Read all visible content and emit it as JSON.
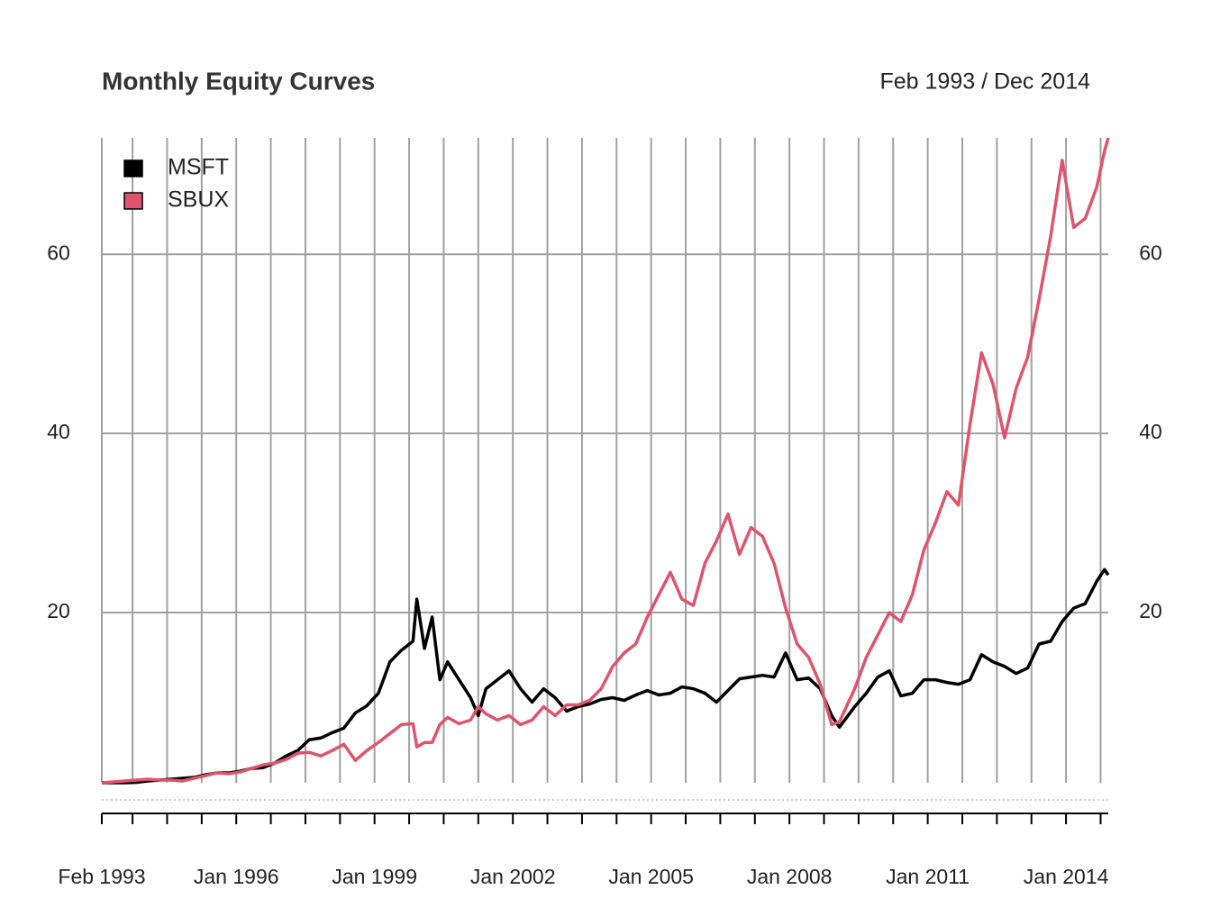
{
  "chart_data": {
    "type": "line",
    "title": "Monthly Equity Curves",
    "subtitle": "Feb 1993 / Dec 2014",
    "x": [
      "1993-02",
      "1993-05",
      "1993-08",
      "1993-11",
      "1994-02",
      "1994-05",
      "1994-08",
      "1994-11",
      "1995-02",
      "1995-05",
      "1995-08",
      "1995-11",
      "1996-02",
      "1996-05",
      "1996-08",
      "1996-11",
      "1997-02",
      "1997-05",
      "1997-08",
      "1997-11",
      "1998-02",
      "1998-05",
      "1998-08",
      "1998-11",
      "1999-02",
      "1999-05",
      "1999-08",
      "1999-11",
      "1999-12",
      "2000-02",
      "2000-04",
      "2000-06",
      "2000-08",
      "2000-11",
      "2001-02",
      "2001-04",
      "2001-06",
      "2001-09",
      "2001-12",
      "2002-03",
      "2002-06",
      "2002-09",
      "2002-12",
      "2003-03",
      "2003-06",
      "2003-09",
      "2003-12",
      "2004-03",
      "2004-06",
      "2004-09",
      "2004-12",
      "2005-03",
      "2005-06",
      "2005-09",
      "2005-12",
      "2006-03",
      "2006-06",
      "2006-09",
      "2006-12",
      "2007-03",
      "2007-06",
      "2007-09",
      "2007-12",
      "2008-03",
      "2008-06",
      "2008-09",
      "2008-12",
      "2009-02",
      "2009-06",
      "2009-09",
      "2009-12",
      "2010-03",
      "2010-06",
      "2010-09",
      "2010-12",
      "2011-03",
      "2011-06",
      "2011-09",
      "2011-12",
      "2012-03",
      "2012-06",
      "2012-09",
      "2012-12",
      "2013-03",
      "2013-06",
      "2013-09",
      "2013-12",
      "2014-03",
      "2014-06",
      "2014-09",
      "2014-11",
      "2014-12"
    ],
    "series": [
      {
        "name": "MSFT",
        "color": "#000000",
        "values": [
          1.0,
          1.0,
          1.0,
          1.05,
          1.2,
          1.3,
          1.4,
          1.5,
          1.6,
          1.9,
          2.1,
          2.1,
          2.3,
          2.6,
          2.7,
          3.2,
          4.0,
          4.6,
          5.8,
          6.0,
          6.6,
          7.1,
          8.8,
          9.6,
          11.0,
          14.5,
          15.8,
          16.8,
          21.5,
          16,
          19.5,
          12.5,
          14.5,
          12.5,
          10.5,
          8.5,
          11.5,
          12.5,
          13.5,
          11.5,
          10,
          11.5,
          10.5,
          9.0,
          9.5,
          9.8,
          10.3,
          10.5,
          10.2,
          10.8,
          11.3,
          10.8,
          11.0,
          11.7,
          11.5,
          11.0,
          10.0,
          11.3,
          12.6,
          12.8,
          13.0,
          12.8,
          15.5,
          12.5,
          12.7,
          11.5,
          8.5,
          7.2,
          9.5,
          11.0,
          12.8,
          13.5,
          10.7,
          11.0,
          12.5,
          12.5,
          12.2,
          12.0,
          12.5,
          15.3,
          14.5,
          14.0,
          13.2,
          13.8,
          16.5,
          16.8,
          19.0,
          20.5,
          21.0,
          23.5,
          24.8,
          24.2
        ]
      },
      {
        "name": "SBUX",
        "color": "#DF536B",
        "values": [
          1.0,
          1.1,
          1.2,
          1.3,
          1.4,
          1.3,
          1.3,
          1.2,
          1.5,
          1.8,
          2.1,
          2.0,
          2.2,
          2.6,
          3.0,
          3.2,
          3.6,
          4.3,
          4.4,
          4.0,
          4.6,
          5.3,
          3.5,
          4.6,
          5.5,
          6.5,
          7.5,
          7.6,
          5.0,
          5.5,
          5.5,
          7.5,
          8.3,
          7.6,
          8.0,
          9.5,
          8.7,
          8.0,
          8.5,
          7.5,
          8.0,
          9.5,
          8.5,
          9.7,
          9.7,
          10.2,
          11.5,
          14.0,
          15.5,
          16.5,
          19.5,
          22.0,
          24.5,
          21.5,
          20.8,
          25.5,
          28.0,
          31.0,
          26.5,
          29.5,
          28.5,
          25.5,
          20.5,
          16.5,
          15.0,
          12.0,
          7.5,
          7.8,
          11.5,
          15.0,
          17.5,
          20.0,
          19.0,
          22.0,
          27.0,
          30.0,
          33.5,
          32.0,
          41.0,
          49.0,
          45.5,
          39.5,
          45.0,
          48.5,
          55.0,
          62.0,
          70.5,
          63.0,
          64.0,
          67.5,
          71.5,
          73.0
        ]
      }
    ],
    "xlim": [
      "1993-02",
      "2014-12"
    ],
    "xticks": [
      {
        "value": "1993-02",
        "label": "Feb 1993"
      },
      {
        "value": "1993-10",
        "label": null
      },
      {
        "value": "1994-07",
        "label": null
      },
      {
        "value": "1995-04",
        "label": null
      },
      {
        "value": "1996-01",
        "label": "Jan 1996"
      },
      {
        "value": "1996-10",
        "label": null
      },
      {
        "value": "1997-07",
        "label": null
      },
      {
        "value": "1998-04",
        "label": null
      },
      {
        "value": "1999-01",
        "label": "Jan 1999"
      },
      {
        "value": "1999-10",
        "label": null
      },
      {
        "value": "2000-07",
        "label": null
      },
      {
        "value": "2001-04",
        "label": null
      },
      {
        "value": "2002-01",
        "label": "Jan 2002"
      },
      {
        "value": "2002-10",
        "label": null
      },
      {
        "value": "2003-07",
        "label": null
      },
      {
        "value": "2004-04",
        "label": null
      },
      {
        "value": "2005-01",
        "label": "Jan 2005"
      },
      {
        "value": "2005-10",
        "label": null
      },
      {
        "value": "2006-07",
        "label": null
      },
      {
        "value": "2007-04",
        "label": null
      },
      {
        "value": "2008-01",
        "label": "Jan 2008"
      },
      {
        "value": "2008-10",
        "label": null
      },
      {
        "value": "2009-07",
        "label": null
      },
      {
        "value": "2010-04",
        "label": null
      },
      {
        "value": "2011-01",
        "label": "Jan 2011"
      },
      {
        "value": "2011-10",
        "label": null
      },
      {
        "value": "2012-07",
        "label": null
      },
      {
        "value": "2013-04",
        "label": null
      },
      {
        "value": "2014-01",
        "label": "Jan 2014"
      },
      {
        "value": "2014-10",
        "label": null
      }
    ],
    "ylim": [
      1,
      73
    ],
    "yticks": [
      20,
      40,
      60
    ],
    "grid": true,
    "legend": "top-left"
  }
}
